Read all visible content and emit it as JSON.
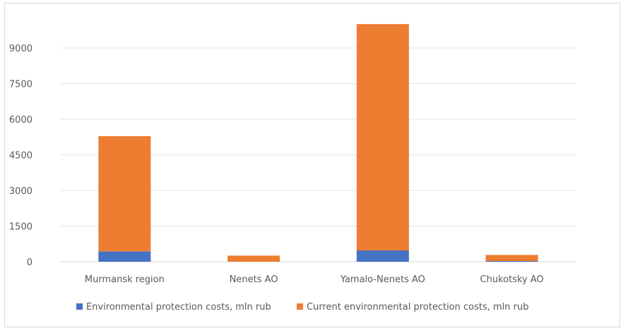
{
  "chart_data": {
    "type": "bar",
    "stacked": true,
    "title": "",
    "categories": [
      "Murmansk region",
      "Nenets AO",
      "Yamalo-Nenets AO",
      "Chukotsky AO"
    ],
    "series": [
      {
        "name": "Environmental protection costs, mln rub",
        "color": "#4472c4",
        "values": [
          436,
          0,
          475,
          30
        ]
      },
      {
        "name": "Current environmental protection costs, mln rub",
        "color": "#ed7d31",
        "values": [
          4850,
          257,
          9530,
          257
        ]
      }
    ],
    "yticks": [
      0,
      1500,
      3000,
      4500,
      6000,
      7500,
      9000
    ],
    "ylim": [
      0,
      10500
    ],
    "grid": true,
    "legend": "bottom"
  }
}
